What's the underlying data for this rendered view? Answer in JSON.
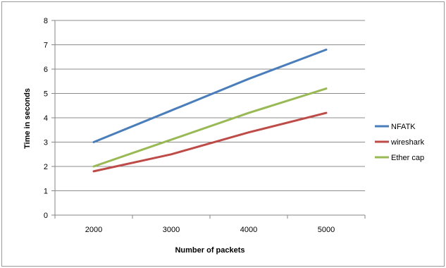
{
  "chart_data": {
    "type": "line",
    "categories": [
      "2000",
      "3000",
      "4000",
      "5000"
    ],
    "series": [
      {
        "name": "NFATK",
        "values": [
          3.0,
          4.3,
          5.6,
          6.8
        ],
        "color": "#4a7ebb"
      },
      {
        "name": "wireshark",
        "values": [
          1.8,
          2.5,
          3.4,
          4.2
        ],
        "color": "#be4b48"
      },
      {
        "name": "Ether cap",
        "values": [
          2.0,
          3.1,
          4.2,
          5.2
        ],
        "color": "#98b954"
      }
    ],
    "xlabel": "Number of packets",
    "ylabel": "Time in seconds",
    "ylim": [
      0,
      8
    ],
    "yticks": [
      "0",
      "1",
      "2",
      "3",
      "4",
      "5",
      "6",
      "7",
      "8"
    ],
    "grid": true,
    "legend_position": "right"
  }
}
